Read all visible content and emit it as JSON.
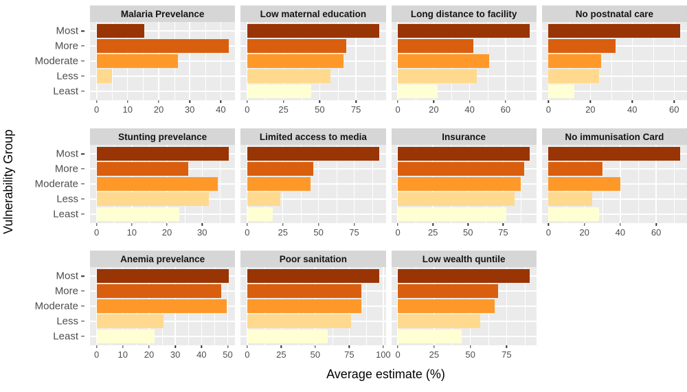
{
  "y_axis_title": "Vulnerability Group",
  "x_axis_title": "Average estimate (%)",
  "categories": [
    "Most",
    "More",
    "Moderate",
    "Less",
    "Least"
  ],
  "bar_colors": [
    "#993404",
    "#d95f0e",
    "#fe9929",
    "#fed98e",
    "#ffffd4"
  ],
  "panel_bg": "#ebebeb",
  "strip_bg": "#d6d6d6",
  "grid_color": "#ffffff",
  "axis_text_color": "#4d4d4d",
  "chart_data": {
    "type": "bar",
    "orientation": "horizontal",
    "categories": [
      "Most",
      "More",
      "Moderate",
      "Less",
      "Least"
    ],
    "ylabel": "Vulnerability Group",
    "xlabel": "Average estimate (%)",
    "grid": true,
    "facets": [
      {
        "title": "Malaria Prevelance",
        "row": 0,
        "col": 0,
        "ticks": [
          0,
          10,
          20,
          30,
          40
        ],
        "values": [
          15.4,
          42.5,
          26.3,
          5.0,
          0.2
        ]
      },
      {
        "title": "Low maternal education",
        "row": 0,
        "col": 1,
        "ticks": [
          0,
          25,
          50,
          75
        ],
        "values": [
          91.0,
          68.5,
          66.5,
          57.5,
          44.0
        ]
      },
      {
        "title": "Long distance to facility",
        "row": 0,
        "col": 2,
        "ticks": [
          0,
          20,
          40,
          60
        ],
        "values": [
          73.5,
          42.0,
          51.0,
          44.0,
          22.0
        ]
      },
      {
        "title": "No postnatal care",
        "row": 0,
        "col": 3,
        "ticks": [
          0,
          20,
          40,
          60
        ],
        "values": [
          63.0,
          32.0,
          25.0,
          24.0,
          12.5
        ]
      },
      {
        "title": "Stunting prevelance",
        "row": 1,
        "col": 0,
        "ticks": [
          0,
          10,
          20,
          30
        ],
        "values": [
          37.5,
          26.0,
          34.5,
          32.0,
          23.5
        ]
      },
      {
        "title": "Limited access to media",
        "row": 1,
        "col": 1,
        "ticks": [
          0,
          25,
          50,
          75
        ],
        "values": [
          92.5,
          46.5,
          44.5,
          23.0,
          18.0
        ]
      },
      {
        "title": "Insurance",
        "row": 1,
        "col": 2,
        "ticks": [
          0,
          25,
          50,
          75
        ],
        "values": [
          94.0,
          90.0,
          87.5,
          83.0,
          77.5
        ]
      },
      {
        "title": "No immunisation Card",
        "row": 1,
        "col": 3,
        "ticks": [
          0,
          20,
          40,
          60
        ],
        "values": [
          73.5,
          30.0,
          40.0,
          24.5,
          28.0
        ]
      },
      {
        "title": "Anemia prevelance",
        "row": 2,
        "col": 0,
        "ticks": [
          0,
          10,
          20,
          30,
          40,
          50
        ],
        "values": [
          50.3,
          47.5,
          49.5,
          25.5,
          22.0
        ]
      },
      {
        "title": "Poor sanitation",
        "row": 2,
        "col": 1,
        "ticks": [
          0,
          25,
          50,
          75,
          100
        ],
        "values": [
          97.0,
          84.0,
          84.0,
          76.5,
          59.0
        ]
      },
      {
        "title": "Low wealth quntile",
        "row": 2,
        "col": 2,
        "ticks": [
          0,
          25,
          50,
          75
        ],
        "values": [
          91.0,
          69.0,
          67.0,
          57.0,
          44.0
        ]
      }
    ]
  }
}
